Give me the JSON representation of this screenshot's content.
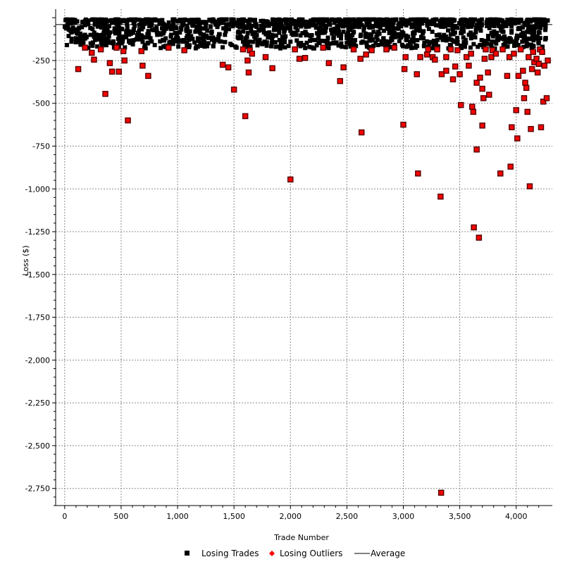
{
  "chart_data": {
    "type": "scatter",
    "title": "",
    "xlabel": "Trade Number",
    "ylabel": "Loss ($)",
    "xlim": [
      -80,
      4320
    ],
    "ylim": [
      -2850,
      50
    ],
    "x_ticks": [
      0,
      500,
      1000,
      1500,
      2000,
      2500,
      3000,
      3500,
      4000
    ],
    "x_tick_labels": [
      "0",
      "500",
      "1,000",
      "1,500",
      "2,000",
      "2,500",
      "3,000",
      "3,500",
      "4,000"
    ],
    "y_ticks": [
      -250,
      -500,
      -750,
      -1000,
      -1250,
      -1500,
      -1750,
      -2000,
      -2250,
      -2500,
      -2750
    ],
    "y_tick_labels": [
      "-250",
      "-500",
      "-750",
      "-1,000",
      "-1,250",
      "-1,500",
      "-1,750",
      "-2,000",
      "-2,250",
      "-2,500",
      "-2,750"
    ],
    "grid": true,
    "legend_position": "bottom",
    "series": [
      {
        "name": "Losing Trades",
        "marker": "square",
        "color": "#000000",
        "band": {
          "x_range": [
            0,
            4280
          ],
          "y_top": -10,
          "y_bottom": -180
        },
        "points": [
          [
            20,
            -160
          ],
          [
            60,
            -140
          ],
          [
            100,
            -120
          ],
          [
            140,
            -155
          ],
          [
            180,
            -100
          ],
          [
            230,
            -150
          ],
          [
            270,
            -130
          ],
          [
            330,
            -165
          ],
          [
            380,
            -120
          ],
          [
            430,
            -150
          ],
          [
            480,
            -170
          ],
          [
            530,
            -110
          ],
          [
            600,
            -140
          ],
          [
            650,
            -90
          ],
          [
            710,
            -160
          ],
          [
            760,
            -120
          ],
          [
            820,
            -100
          ],
          [
            870,
            -130
          ],
          [
            940,
            -110
          ],
          [
            990,
            -90
          ],
          [
            1050,
            -140
          ],
          [
            1110,
            -80
          ],
          [
            1180,
            -120
          ],
          [
            1250,
            -60
          ],
          [
            1300,
            -90
          ],
          [
            1360,
            -130
          ],
          [
            1420,
            -100
          ],
          [
            1480,
            -160
          ],
          [
            1550,
            -120
          ],
          [
            1610,
            -140
          ],
          [
            1680,
            -110
          ],
          [
            1740,
            -150
          ],
          [
            1800,
            -90
          ],
          [
            1870,
            -170
          ],
          [
            1930,
            -120
          ],
          [
            2000,
            -140
          ],
          [
            2050,
            -100
          ],
          [
            2120,
            -160
          ],
          [
            2190,
            -130
          ],
          [
            2250,
            -110
          ],
          [
            2310,
            -170
          ],
          [
            2380,
            -120
          ],
          [
            2450,
            -150
          ],
          [
            2510,
            -90
          ],
          [
            2580,
            -165
          ],
          [
            2640,
            -140
          ],
          [
            2700,
            -120
          ],
          [
            2770,
            -100
          ],
          [
            2840,
            -160
          ],
          [
            2900,
            -130
          ],
          [
            2960,
            -110
          ],
          [
            3030,
            -170
          ],
          [
            3090,
            -140
          ],
          [
            3160,
            -120
          ],
          [
            3220,
            -170
          ],
          [
            3290,
            -150
          ],
          [
            3350,
            -130
          ],
          [
            3420,
            -165
          ],
          [
            3480,
            -140
          ],
          [
            3540,
            -160
          ],
          [
            3600,
            -120
          ],
          [
            3660,
            -170
          ],
          [
            3720,
            -145
          ],
          [
            3780,
            -160
          ],
          [
            3840,
            -130
          ],
          [
            3900,
            -170
          ],
          [
            3960,
            -140
          ],
          [
            4020,
            -160
          ],
          [
            4080,
            -130
          ],
          [
            4140,
            -170
          ],
          [
            4200,
            -150
          ],
          [
            4260,
            -120
          ]
        ]
      },
      {
        "name": "Losing Outliers",
        "marker": "diamond",
        "color": "#ff0000",
        "points": [
          [
            120,
            -300
          ],
          [
            180,
            -175
          ],
          [
            240,
            -205
          ],
          [
            260,
            -245
          ],
          [
            320,
            -185
          ],
          [
            360,
            -445
          ],
          [
            400,
            -265
          ],
          [
            420,
            -315
          ],
          [
            460,
            -175
          ],
          [
            480,
            -315
          ],
          [
            520,
            -195
          ],
          [
            530,
            -250
          ],
          [
            560,
            -600
          ],
          [
            680,
            -195
          ],
          [
            690,
            -280
          ],
          [
            740,
            -340
          ],
          [
            920,
            -175
          ],
          [
            1060,
            -190
          ],
          [
            1400,
            -275
          ],
          [
            1450,
            -290
          ],
          [
            1500,
            -420
          ],
          [
            1580,
            -185
          ],
          [
            1600,
            -575
          ],
          [
            1620,
            -250
          ],
          [
            1630,
            -320
          ],
          [
            1640,
            -190
          ],
          [
            1660,
            -210
          ],
          [
            1780,
            -230
          ],
          [
            1840,
            -295
          ],
          [
            2000,
            -945
          ],
          [
            2040,
            -185
          ],
          [
            2080,
            -240
          ],
          [
            2130,
            -235
          ],
          [
            2290,
            -175
          ],
          [
            2340,
            -265
          ],
          [
            2440,
            -370
          ],
          [
            2470,
            -290
          ],
          [
            2560,
            -185
          ],
          [
            2620,
            -240
          ],
          [
            2630,
            -670
          ],
          [
            2670,
            -215
          ],
          [
            2720,
            -190
          ],
          [
            2850,
            -185
          ],
          [
            2920,
            -175
          ],
          [
            3000,
            -625
          ],
          [
            3010,
            -300
          ],
          [
            3020,
            -230
          ],
          [
            3120,
            -330
          ],
          [
            3130,
            -910
          ],
          [
            3150,
            -230
          ],
          [
            3210,
            -215
          ],
          [
            3220,
            -185
          ],
          [
            3260,
            -230
          ],
          [
            3280,
            -245
          ],
          [
            3300,
            -185
          ],
          [
            3330,
            -1045
          ],
          [
            3335,
            -2775
          ],
          [
            3340,
            -330
          ],
          [
            3380,
            -310
          ],
          [
            3380,
            -230
          ],
          [
            3420,
            -185
          ],
          [
            3440,
            -360
          ],
          [
            3460,
            -285
          ],
          [
            3480,
            -190
          ],
          [
            3500,
            -330
          ],
          [
            3510,
            -510
          ],
          [
            3560,
            -230
          ],
          [
            3580,
            -280
          ],
          [
            3600,
            -210
          ],
          [
            3610,
            -520
          ],
          [
            3620,
            -550
          ],
          [
            3625,
            -1225
          ],
          [
            3650,
            -380
          ],
          [
            3650,
            -770
          ],
          [
            3670,
            -1285
          ],
          [
            3680,
            -350
          ],
          [
            3700,
            -630
          ],
          [
            3700,
            -415
          ],
          [
            3710,
            -470
          ],
          [
            3720,
            -240
          ],
          [
            3730,
            -185
          ],
          [
            3750,
            -320
          ],
          [
            3760,
            -450
          ],
          [
            3780,
            -230
          ],
          [
            3790,
            -190
          ],
          [
            3820,
            -210
          ],
          [
            3860,
            -910
          ],
          [
            3880,
            -185
          ],
          [
            3920,
            -340
          ],
          [
            3940,
            -230
          ],
          [
            3950,
            -870
          ],
          [
            3960,
            -640
          ],
          [
            3980,
            -210
          ],
          [
            4000,
            -540
          ],
          [
            4010,
            -705
          ],
          [
            4020,
            -340
          ],
          [
            4040,
            -185
          ],
          [
            4060,
            -310
          ],
          [
            4070,
            -470
          ],
          [
            4080,
            -380
          ],
          [
            4090,
            -410
          ],
          [
            4100,
            -550
          ],
          [
            4110,
            -230
          ],
          [
            4120,
            -985
          ],
          [
            4130,
            -650
          ],
          [
            4140,
            -300
          ],
          [
            4150,
            -200
          ],
          [
            4160,
            -260
          ],
          [
            4180,
            -240
          ],
          [
            4190,
            -320
          ],
          [
            4200,
            -270
          ],
          [
            4210,
            -185
          ],
          [
            4220,
            -640
          ],
          [
            4230,
            -200
          ],
          [
            4240,
            -490
          ],
          [
            4250,
            -280
          ],
          [
            4270,
            -470
          ],
          [
            4280,
            -250
          ]
        ]
      },
      {
        "name": "Average",
        "marker": "line",
        "color": "#000000",
        "value": -40
      }
    ]
  }
}
